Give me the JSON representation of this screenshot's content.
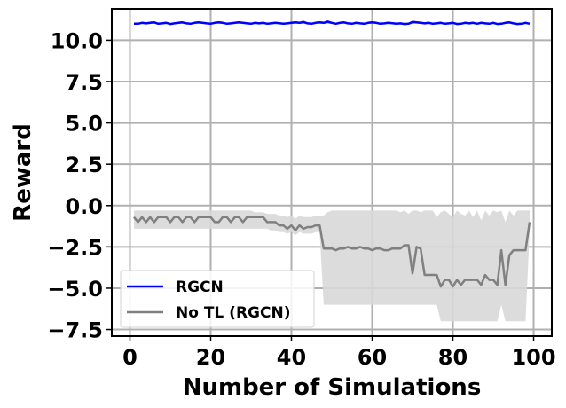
{
  "chart_data": {
    "type": "line",
    "title": "",
    "xlabel": "Number of Simulations",
    "ylabel": "Reward",
    "xlim": [
      -4.5,
      104.5
    ],
    "ylim": [
      -7.9,
      11.9
    ],
    "xticks": [
      0,
      20,
      40,
      60,
      80,
      100
    ],
    "yticks": [
      -7.5,
      -5.0,
      -2.5,
      0.0,
      2.5,
      5.0,
      7.5,
      10.0
    ],
    "xtick_labels": [
      "0",
      "20",
      "40",
      "60",
      "80",
      "100"
    ],
    "ytick_labels": [
      "−7.5",
      "−5.0",
      "−2.5",
      "0.0",
      "2.5",
      "5.0",
      "7.5",
      "10.0"
    ],
    "grid": true,
    "legend_position": "lower-left",
    "series": [
      {
        "name": "RGCN",
        "color": "#0000ff",
        "band_color": "#aaaaff",
        "x": [
          1,
          2,
          3,
          4,
          5,
          6,
          7,
          8,
          9,
          10,
          11,
          12,
          13,
          14,
          15,
          16,
          17,
          18,
          19,
          20,
          21,
          22,
          23,
          24,
          25,
          26,
          27,
          28,
          29,
          30,
          31,
          32,
          33,
          34,
          35,
          36,
          37,
          38,
          39,
          40,
          41,
          42,
          43,
          44,
          45,
          46,
          47,
          48,
          49,
          50,
          51,
          52,
          53,
          54,
          55,
          56,
          57,
          58,
          59,
          60,
          61,
          62,
          63,
          64,
          65,
          66,
          67,
          68,
          69,
          70,
          71,
          72,
          73,
          74,
          75,
          76,
          77,
          78,
          79,
          80,
          81,
          82,
          83,
          84,
          85,
          86,
          87,
          88,
          89,
          90,
          91,
          92,
          93,
          94,
          95,
          96,
          97,
          98,
          99
        ],
        "y": [
          11.0,
          11.0,
          11.05,
          11.02,
          11.05,
          11.08,
          11.0,
          11.02,
          11.05,
          10.98,
          11.02,
          11.05,
          11.08,
          11.02,
          11.0,
          11.05,
          11.08,
          11.05,
          11.02,
          11.0,
          11.05,
          11.08,
          11.05,
          11.0,
          11.02,
          11.05,
          11.08,
          11.05,
          11.02,
          11.0,
          11.05,
          11.02,
          11.05,
          11.0,
          11.02,
          11.05,
          11.03,
          11.0,
          11.02,
          11.05,
          11.08,
          11.05,
          11.1,
          11.02,
          11.0,
          11.05,
          11.08,
          11.05,
          11.12,
          11.05,
          11.0,
          11.05,
          11.08,
          11.02,
          11.0,
          11.05,
          11.02,
          11.0,
          11.05,
          11.08,
          11.05,
          11.0,
          11.02,
          11.05,
          11.03,
          11.0,
          11.02,
          10.98,
          11.0,
          11.1,
          11.08,
          11.05,
          11.02,
          11.05,
          11.0,
          11.02,
          11.05,
          11.0,
          11.02,
          11.05,
          10.98,
          11.0,
          11.05,
          11.02,
          11.05,
          11.0,
          11.05,
          11.02,
          11.0,
          11.05,
          10.98,
          11.0,
          11.05,
          11.08,
          11.02,
          10.98,
          11.0,
          11.05,
          11.0
        ],
        "lower": [
          10.95,
          10.95,
          10.98,
          10.96,
          10.98,
          11.0,
          10.95,
          10.96,
          10.98,
          10.92,
          10.96,
          10.98,
          11.0,
          10.96,
          10.95,
          10.98,
          11.0,
          10.98,
          10.96,
          10.95,
          10.98,
          11.0,
          10.98,
          10.95,
          10.96,
          10.98,
          11.0,
          10.98,
          10.96,
          10.95,
          10.98,
          10.96,
          10.98,
          10.95,
          10.96,
          10.98,
          10.97,
          10.95,
          10.96,
          10.98,
          11.0,
          10.98,
          11.0,
          10.96,
          10.95,
          10.98,
          11.0,
          10.98,
          11.0,
          10.98,
          10.95,
          10.98,
          11.0,
          10.96,
          10.95,
          10.98,
          10.96,
          10.95,
          10.98,
          11.0,
          10.98,
          10.95,
          10.96,
          10.98,
          10.97,
          10.95,
          10.96,
          10.92,
          10.95,
          11.0,
          11.0,
          10.98,
          10.96,
          10.98,
          10.95,
          10.96,
          10.98,
          10.95,
          10.96,
          10.98,
          10.92,
          10.95,
          10.98,
          10.96,
          10.98,
          10.95,
          10.98,
          10.96,
          10.95,
          10.98,
          10.92,
          10.95,
          10.98,
          11.0,
          10.96,
          10.92,
          10.95,
          10.98,
          10.95
        ],
        "upper": [
          11.05,
          11.05,
          11.12,
          11.08,
          11.12,
          11.15,
          11.05,
          11.08,
          11.12,
          11.04,
          11.08,
          11.12,
          11.15,
          11.08,
          11.05,
          11.12,
          11.15,
          11.12,
          11.08,
          11.05,
          11.12,
          11.15,
          11.12,
          11.05,
          11.08,
          11.12,
          11.15,
          11.12,
          11.08,
          11.05,
          11.12,
          11.08,
          11.12,
          11.05,
          11.08,
          11.12,
          11.09,
          11.05,
          11.08,
          11.12,
          11.15,
          11.12,
          11.2,
          11.08,
          11.05,
          11.12,
          11.15,
          11.12,
          11.22,
          11.12,
          11.05,
          11.12,
          11.15,
          11.08,
          11.05,
          11.12,
          11.08,
          11.05,
          11.12,
          11.15,
          11.12,
          11.05,
          11.08,
          11.12,
          11.09,
          11.05,
          11.08,
          11.04,
          11.05,
          11.2,
          11.15,
          11.12,
          11.08,
          11.12,
          11.05,
          11.08,
          11.12,
          11.05,
          11.08,
          11.12,
          11.04,
          11.05,
          11.12,
          11.08,
          11.12,
          11.05,
          11.12,
          11.08,
          11.05,
          11.12,
          11.04,
          11.05,
          11.12,
          11.15,
          11.08,
          11.04,
          11.05,
          11.12,
          11.05
        ]
      },
      {
        "name": "No TL (RGCN)",
        "color": "#808080",
        "band_color": "#d8d8d8",
        "x": [
          1,
          2,
          3,
          4,
          5,
          6,
          7,
          8,
          9,
          10,
          11,
          12,
          13,
          14,
          15,
          16,
          17,
          18,
          19,
          20,
          21,
          22,
          23,
          24,
          25,
          26,
          27,
          28,
          29,
          30,
          31,
          32,
          33,
          34,
          35,
          36,
          37,
          38,
          39,
          40,
          41,
          42,
          43,
          44,
          45,
          46,
          47,
          48,
          49,
          50,
          51,
          52,
          53,
          54,
          55,
          56,
          57,
          58,
          59,
          60,
          61,
          62,
          63,
          64,
          65,
          66,
          67,
          68,
          69,
          70,
          71,
          72,
          73,
          74,
          75,
          76,
          77,
          78,
          79,
          80,
          81,
          82,
          83,
          84,
          85,
          86,
          87,
          88,
          89,
          90,
          91,
          92,
          93,
          94,
          95,
          96,
          97,
          98,
          99
        ],
        "y": [
          -0.7,
          -1.0,
          -0.7,
          -1.0,
          -0.7,
          -1.0,
          -0.7,
          -0.7,
          -0.7,
          -1.0,
          -0.7,
          -0.7,
          -1.0,
          -0.7,
          -0.7,
          -1.0,
          -0.7,
          -0.7,
          -0.7,
          -0.7,
          -1.0,
          -1.0,
          -0.7,
          -0.7,
          -1.0,
          -0.7,
          -0.7,
          -1.0,
          -0.7,
          -0.7,
          -0.7,
          -0.7,
          -0.7,
          -1.0,
          -1.0,
          -1.0,
          -1.2,
          -1.2,
          -1.4,
          -1.2,
          -1.5,
          -1.2,
          -1.4,
          -1.3,
          -1.3,
          -1.2,
          -1.2,
          -2.6,
          -2.6,
          -2.6,
          -2.7,
          -2.6,
          -2.6,
          -2.5,
          -2.6,
          -2.6,
          -2.5,
          -2.6,
          -2.6,
          -2.7,
          -2.6,
          -2.6,
          -2.7,
          -2.7,
          -2.6,
          -2.6,
          -2.6,
          -2.4,
          -2.4,
          -4.1,
          -2.5,
          -2.6,
          -4.2,
          -4.2,
          -4.2,
          -4.2,
          -4.9,
          -4.5,
          -4.5,
          -4.9,
          -4.5,
          -4.8,
          -4.5,
          -4.5,
          -4.5,
          -4.5,
          -4.8,
          -4.2,
          -4.5,
          -4.5,
          -4.8,
          -2.7,
          -4.8,
          -3.0,
          -2.7,
          -2.7,
          -2.7,
          -2.7,
          -1.0
        ],
        "lower": [
          -1.4,
          -1.4,
          -1.4,
          -1.4,
          -1.4,
          -1.4,
          -1.4,
          -1.4,
          -1.4,
          -1.4,
          -1.4,
          -1.4,
          -1.4,
          -1.4,
          -1.4,
          -1.4,
          -1.4,
          -1.4,
          -1.4,
          -1.4,
          -1.4,
          -1.4,
          -1.4,
          -1.4,
          -1.4,
          -1.4,
          -1.4,
          -1.4,
          -1.4,
          -1.4,
          -1.4,
          -1.4,
          -1.4,
          -1.4,
          -1.5,
          -1.5,
          -1.6,
          -1.6,
          -1.7,
          -1.6,
          -1.8,
          -1.6,
          -1.7,
          -1.7,
          -1.7,
          -1.6,
          -1.6,
          -6.0,
          -6.0,
          -6.0,
          -6.0,
          -6.0,
          -6.0,
          -6.0,
          -6.0,
          -6.0,
          -6.0,
          -6.0,
          -6.0,
          -6.0,
          -6.0,
          -6.0,
          -6.0,
          -6.0,
          -6.0,
          -6.0,
          -6.0,
          -6.0,
          -6.0,
          -6.0,
          -6.0,
          -6.0,
          -6.0,
          -6.0,
          -6.0,
          -6.0,
          -7.0,
          -7.0,
          -7.0,
          -7.0,
          -7.0,
          -7.0,
          -7.0,
          -7.0,
          -7.0,
          -7.0,
          -7.0,
          -7.0,
          -7.0,
          -7.0,
          -7.0,
          -6.0,
          -7.0,
          -7.0,
          -7.0,
          -7.0,
          -7.0,
          -7.0,
          -1.6
        ],
        "upper": [
          -0.3,
          -0.3,
          -0.3,
          -0.3,
          -0.3,
          -0.3,
          -0.3,
          -0.3,
          -0.3,
          -0.3,
          -0.3,
          -0.3,
          -0.3,
          -0.3,
          -0.3,
          -0.3,
          -0.3,
          -0.3,
          -0.3,
          -0.3,
          -0.3,
          -0.3,
          -0.3,
          -0.3,
          -0.3,
          -0.3,
          -0.3,
          -0.3,
          -0.3,
          -0.3,
          -0.4,
          -0.4,
          -0.4,
          -0.5,
          -0.5,
          -0.5,
          -0.6,
          -0.6,
          -0.7,
          -0.6,
          -0.8,
          -0.6,
          -0.7,
          -0.7,
          -0.7,
          -0.6,
          -0.6,
          -0.6,
          -0.4,
          -0.3,
          -0.3,
          -0.3,
          -0.3,
          -0.3,
          -0.3,
          -0.3,
          -0.3,
          -0.3,
          -0.3,
          -0.3,
          -0.3,
          -0.3,
          -0.3,
          -0.3,
          -0.3,
          -0.3,
          -0.4,
          -0.3,
          -0.5,
          -0.3,
          -0.3,
          -0.4,
          -0.3,
          -0.3,
          -0.3,
          -0.7,
          -0.4,
          -0.3,
          -0.5,
          -0.7,
          -0.3,
          -0.5,
          -0.6,
          -0.3,
          -0.7,
          -0.3,
          -0.9,
          -0.3,
          -0.6,
          -0.3,
          -0.4,
          -0.3,
          -1.0,
          -0.3,
          -0.6,
          -0.3,
          -0.3,
          -0.3,
          -0.3
        ]
      }
    ]
  }
}
